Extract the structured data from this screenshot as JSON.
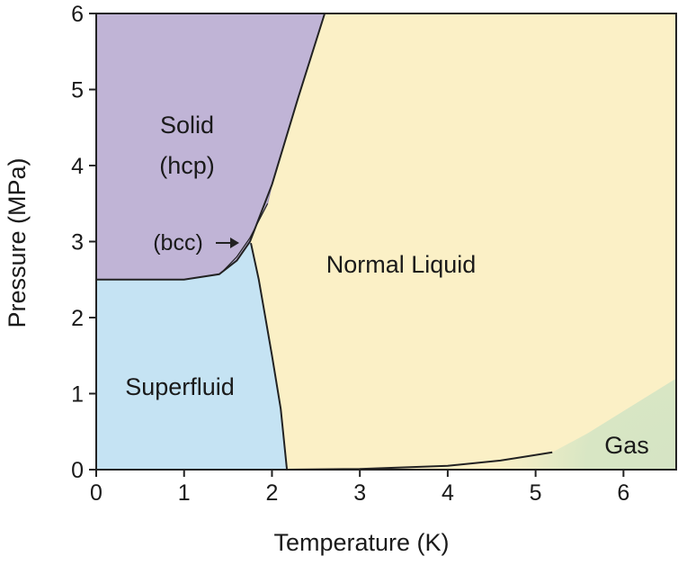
{
  "chart_data": {
    "type": "phase-diagram",
    "xlabel": "Temperature (K)",
    "ylabel": "Pressure (MPa)",
    "xlim": [
      0,
      6.6
    ],
    "ylim": [
      0,
      6
    ],
    "x_ticks": [
      "0",
      "1",
      "2",
      "3",
      "4",
      "5",
      "6"
    ],
    "y_ticks": [
      "0",
      "1",
      "2",
      "3",
      "4",
      "5",
      "6"
    ],
    "regions": [
      {
        "name": "solid",
        "label_lines": [
          "Solid",
          "(hcp)"
        ],
        "color": "#c0b4d6"
      },
      {
        "name": "superfluid",
        "label_lines": [
          "Superfluid"
        ],
        "color": "#c5e3f3"
      },
      {
        "name": "normal-liquid",
        "label_lines": [
          "Normal Liquid"
        ],
        "color": "#fbf0c6"
      },
      {
        "name": "gas",
        "label_lines": [
          "Gas"
        ],
        "color": "#d5e4c4"
      }
    ],
    "annotations": [
      {
        "name": "bcc",
        "text": "(bcc)",
        "arrow": "right"
      }
    ],
    "boundaries": {
      "melting_curve": [
        [
          0,
          2.5
        ],
        [
          1.0,
          2.5
        ],
        [
          1.4,
          2.57
        ],
        [
          1.6,
          2.75
        ],
        [
          1.75,
          3.0
        ],
        [
          2.0,
          3.75
        ],
        [
          2.3,
          4.9
        ],
        [
          2.6,
          6.0
        ]
      ],
      "lambda_line": [
        [
          1.76,
          2.98
        ],
        [
          1.85,
          2.5
        ],
        [
          2.0,
          1.5
        ],
        [
          2.1,
          0.8
        ],
        [
          2.17,
          0.0
        ]
      ],
      "vaporization_curve": [
        [
          2.17,
          0.0
        ],
        [
          3.0,
          0.01
        ],
        [
          4.0,
          0.05
        ],
        [
          4.6,
          0.12
        ],
        [
          5.19,
          0.227
        ]
      ],
      "bcc_upper": [
        [
          1.45,
          2.62
        ],
        [
          1.6,
          2.8
        ],
        [
          1.75,
          3.05
        ],
        [
          1.95,
          3.5
        ]
      ]
    }
  }
}
